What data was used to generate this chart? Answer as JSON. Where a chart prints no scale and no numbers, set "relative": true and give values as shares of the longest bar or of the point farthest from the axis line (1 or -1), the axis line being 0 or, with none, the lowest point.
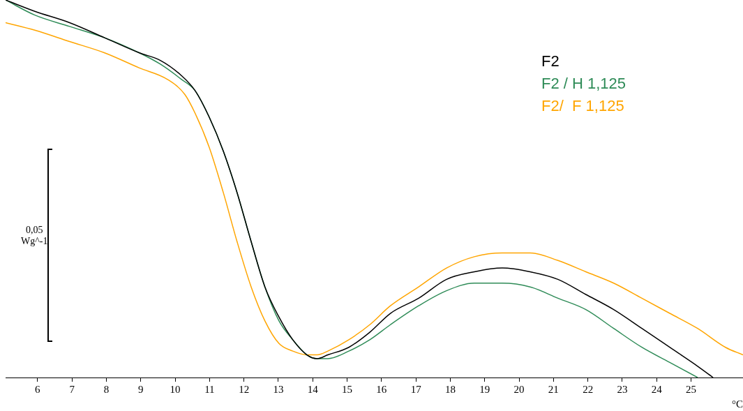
{
  "chart_data": {
    "type": "line",
    "relative": true,
    "xlabel": "°C",
    "xlim": [
      5.07,
      26.51
    ],
    "xticks": [
      6,
      7,
      8,
      9,
      10,
      11,
      12,
      13,
      14,
      15,
      16,
      17,
      18,
      19,
      20,
      21,
      22,
      23,
      24,
      25
    ],
    "legend": "top right",
    "marker": "none",
    "line_style": "solid",
    "grid": false,
    "tick_labels": "x",
    "annotations": [
      "0,05",
      "Wg^-1"
    ],
    "series": [
      {
        "name": "F2",
        "color": "#000000",
        "x": [
          5.07,
          5.92,
          6.93,
          7.95,
          8.96,
          9.57,
          10.18,
          10.58,
          10.99,
          11.4,
          11.8,
          12.21,
          12.61,
          13.02,
          13.42,
          13.83,
          14.13,
          14.44,
          15.05,
          15.66,
          16.26,
          17.08,
          17.89,
          18.7,
          19.51,
          20.32,
          21.13,
          21.94,
          22.75,
          23.57,
          24.38,
          25.19,
          25.64
        ],
        "values": [
          1.0,
          0.97,
          0.94,
          0.9,
          0.86,
          0.84,
          0.8,
          0.76,
          0.69,
          0.6,
          0.49,
          0.36,
          0.24,
          0.16,
          0.1,
          0.06,
          0.05,
          0.06,
          0.08,
          0.12,
          0.17,
          0.21,
          0.26,
          0.28,
          0.29,
          0.28,
          0.26,
          0.22,
          0.18,
          0.13,
          0.08,
          0.03,
          0.0
        ]
      },
      {
        "name": "F2 / H 1,125",
        "color": "#2e8b57",
        "x": [
          5.07,
          5.92,
          6.93,
          7.95,
          8.96,
          9.57,
          10.18,
          10.58,
          10.99,
          11.4,
          11.8,
          12.21,
          12.61,
          13.02,
          13.42,
          13.83,
          14.13,
          14.44,
          15.05,
          15.66,
          16.26,
          17.08,
          17.89,
          18.7,
          19.51,
          20.32,
          21.13,
          21.94,
          22.75,
          23.57,
          24.38,
          25.19
        ],
        "values": [
          1.0,
          0.96,
          0.93,
          0.9,
          0.86,
          0.83,
          0.79,
          0.76,
          0.69,
          0.6,
          0.49,
          0.36,
          0.24,
          0.15,
          0.1,
          0.06,
          0.05,
          0.05,
          0.07,
          0.1,
          0.14,
          0.19,
          0.23,
          0.25,
          0.25,
          0.24,
          0.21,
          0.18,
          0.13,
          0.08,
          0.04,
          0.0
        ]
      },
      {
        "name": "F2/  F 1,125",
        "color": "#ffa500",
        "x": [
          5.07,
          5.92,
          6.93,
          7.95,
          8.96,
          9.77,
          10.28,
          10.58,
          10.99,
          11.4,
          11.8,
          12.21,
          12.61,
          13.02,
          13.42,
          13.83,
          14.13,
          14.44,
          15.05,
          15.66,
          16.26,
          17.08,
          17.89,
          18.7,
          19.51,
          20.32,
          21.13,
          21.94,
          22.75,
          23.57,
          24.38,
          25.19,
          26.0,
          26.51
        ],
        "values": [
          0.94,
          0.92,
          0.89,
          0.86,
          0.82,
          0.79,
          0.75,
          0.7,
          0.61,
          0.49,
          0.36,
          0.24,
          0.15,
          0.09,
          0.07,
          0.06,
          0.06,
          0.07,
          0.1,
          0.14,
          0.19,
          0.24,
          0.29,
          0.32,
          0.33,
          0.33,
          0.31,
          0.28,
          0.25,
          0.21,
          0.17,
          0.13,
          0.08,
          0.06
        ]
      }
    ]
  }
}
